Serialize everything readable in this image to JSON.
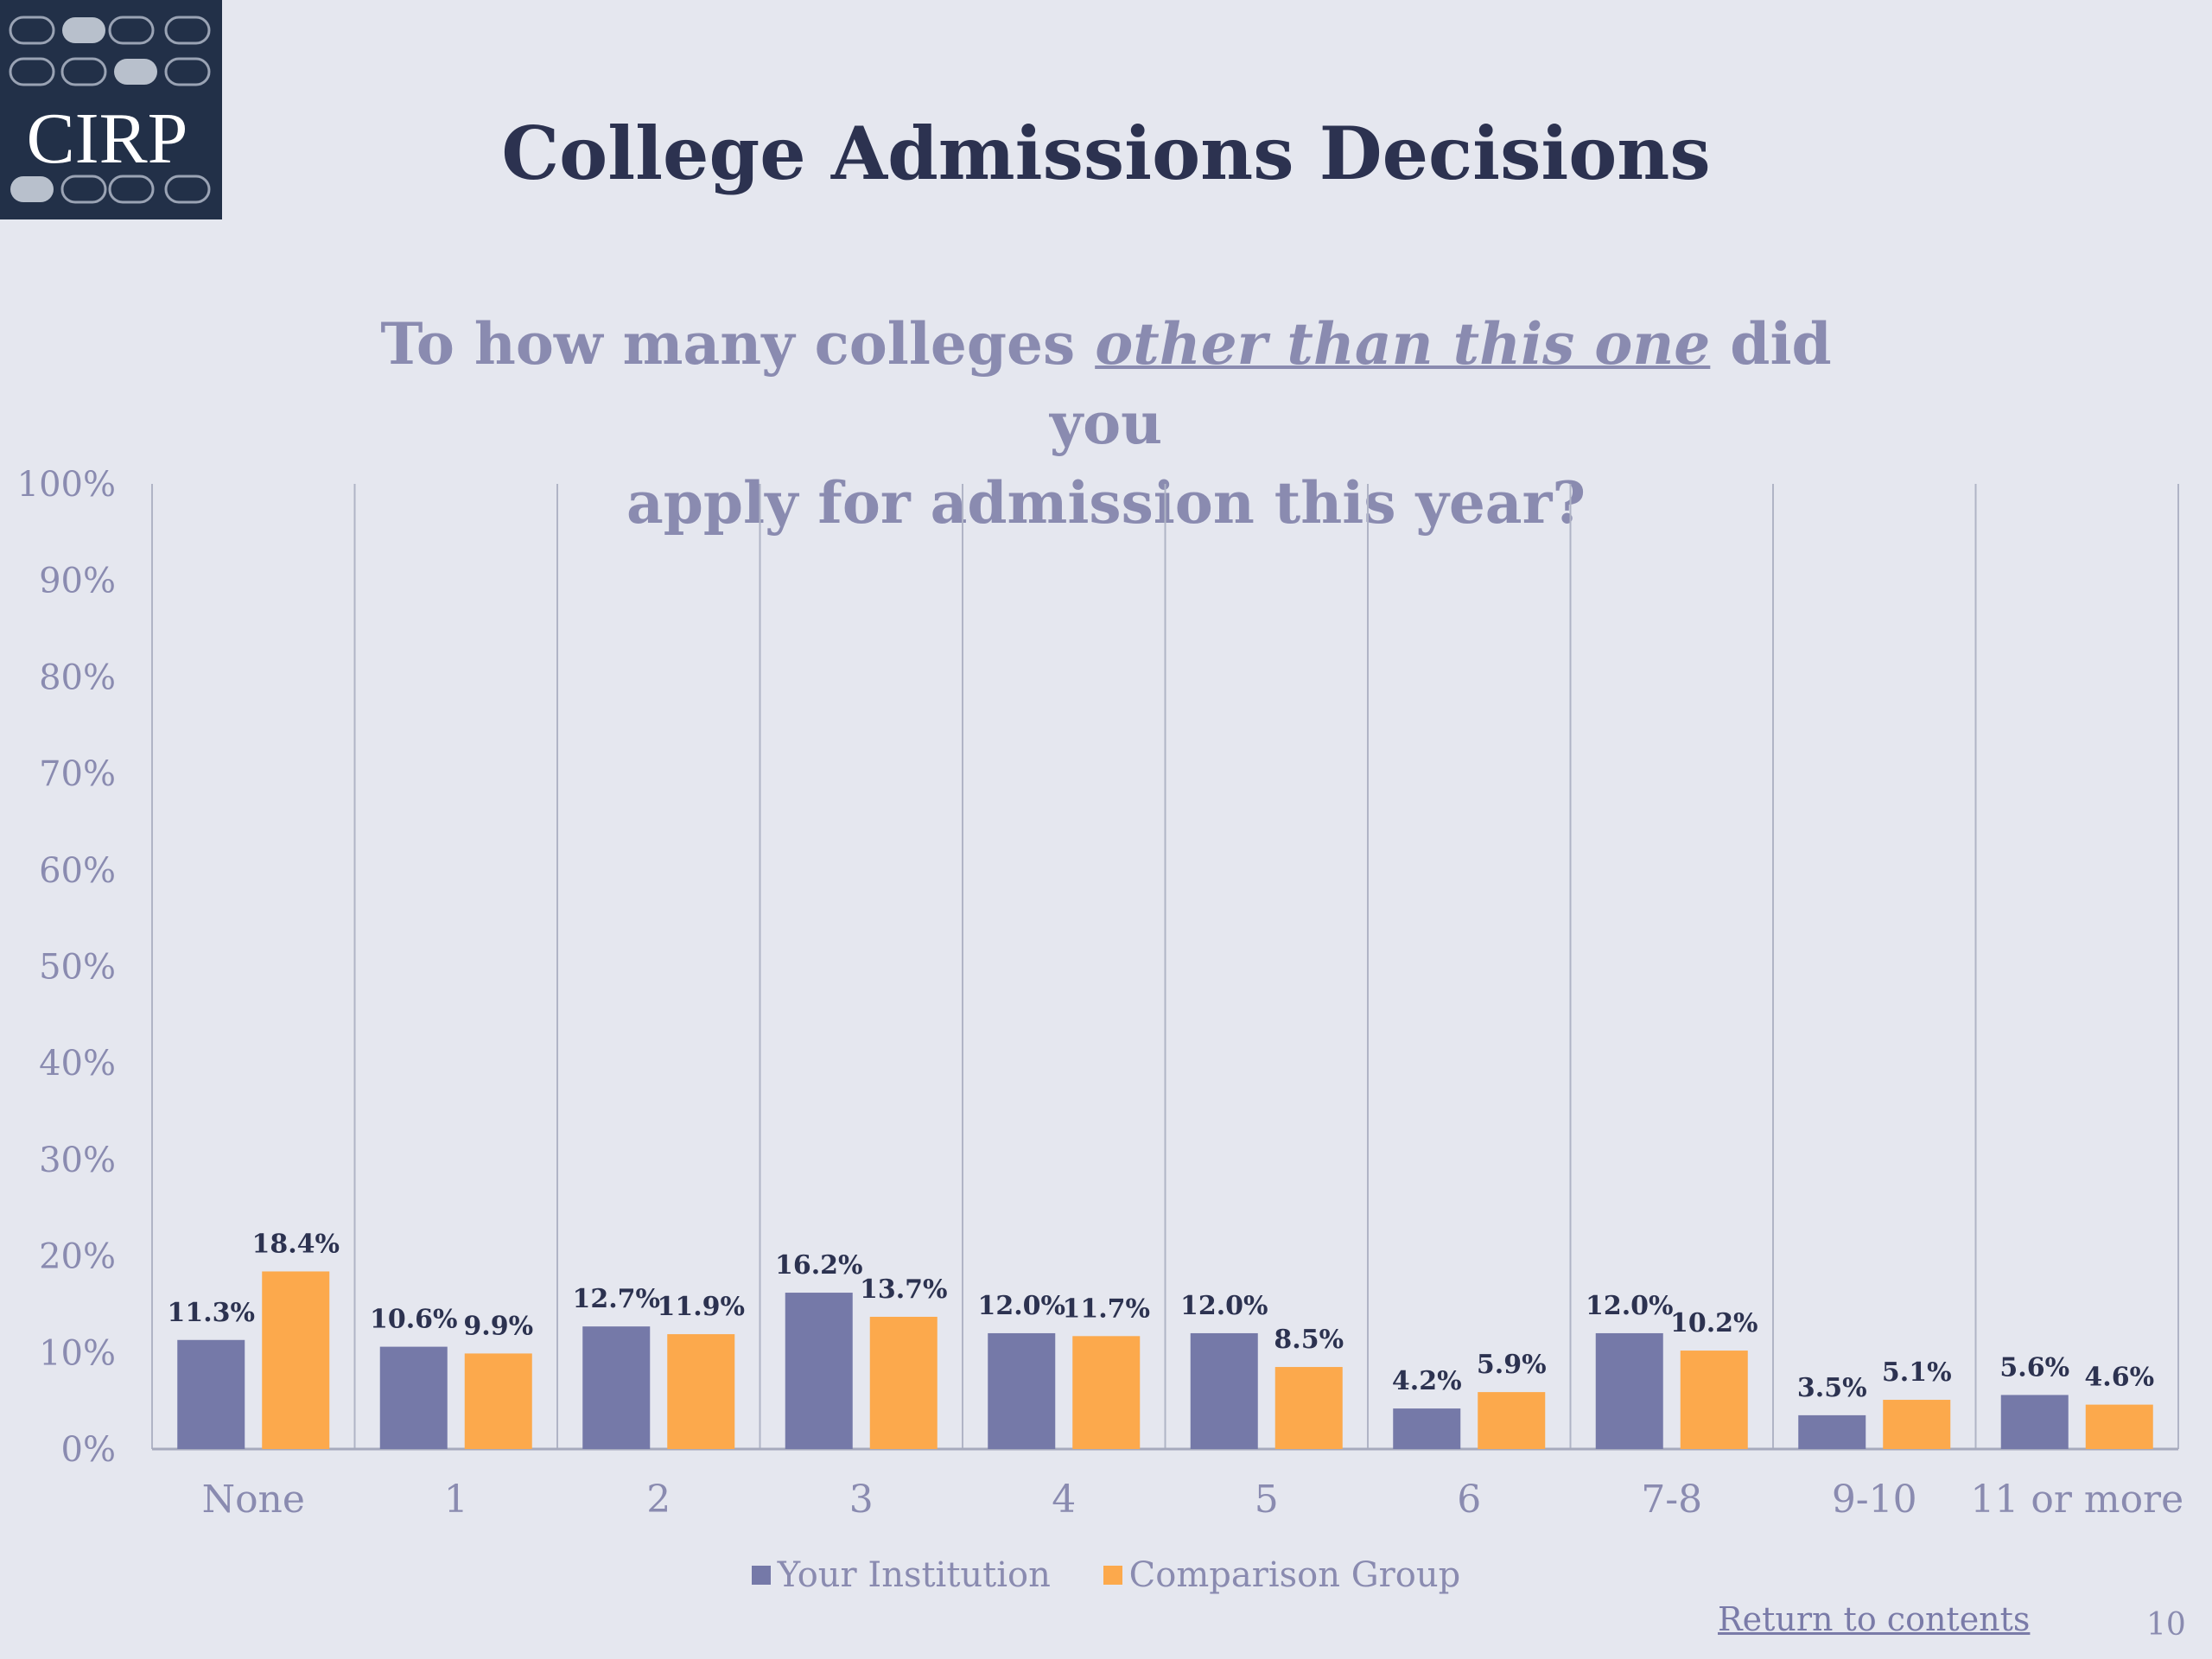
{
  "logo": {
    "text": "CIRP"
  },
  "slide": {
    "title": "College Admissions Decisions",
    "question_pre": "To how many colleges ",
    "question_em": "other than this one",
    "question_mid": " did you",
    "question_post": "apply for admission this year?",
    "return_link": "Return to contents",
    "page_number": "10"
  },
  "colors": {
    "your_institution": "#7579a8",
    "comparison_group": "#fca94c"
  },
  "chart_data": {
    "type": "bar",
    "categories": [
      "None",
      "1",
      "2",
      "3",
      "4",
      "5",
      "6",
      "7-8",
      "9-10",
      "11 or more"
    ],
    "series": [
      {
        "name": "Your Institution",
        "values": [
          11.3,
          10.6,
          12.7,
          16.2,
          12.0,
          12.0,
          4.2,
          12.0,
          3.5,
          5.6
        ]
      },
      {
        "name": "Comparison Group",
        "values": [
          18.4,
          9.9,
          11.9,
          13.7,
          11.7,
          8.5,
          5.9,
          10.2,
          5.1,
          4.6
        ]
      }
    ],
    "data_labels": [
      [
        "11.3%",
        "10.6%",
        "12.7%",
        "16.2%",
        "12.0%",
        "12.0%",
        "4.2%",
        "12.0%",
        "3.5%",
        "5.6%"
      ],
      [
        "18.4%",
        "9.9%",
        "11.9%",
        "13.7%",
        "11.7%",
        "8.5%",
        "5.9%",
        "10.2%",
        "5.1%",
        "4.6%"
      ]
    ],
    "yticks": [
      "0%",
      "10%",
      "20%",
      "30%",
      "40%",
      "50%",
      "60%",
      "70%",
      "80%",
      "90%",
      "100%"
    ],
    "ylim": [
      0,
      100
    ],
    "legend": "bottom",
    "grid": "vertical category separators"
  }
}
